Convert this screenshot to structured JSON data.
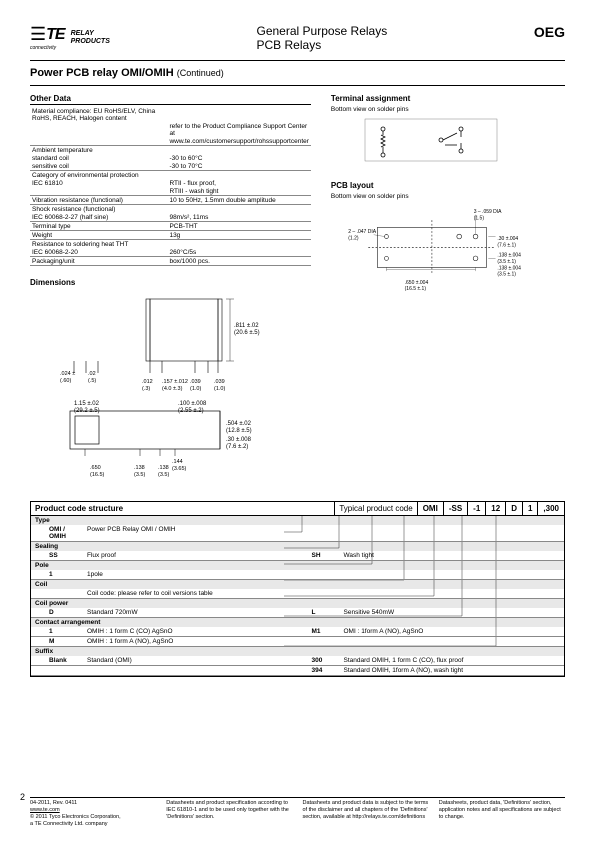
{
  "header": {
    "logo_text": "TE",
    "logo_sub": "connectivity",
    "logo_side": "RELAY\nPRODUCTS",
    "title1": "General Purpose Relays",
    "title2": "PCB Relays",
    "brand": "OEG"
  },
  "main_title": "Power PCB relay OMI/OMIH",
  "continued": "(Continued)",
  "other_data": {
    "heading": "Other Data",
    "rows": [
      {
        "l": "Material compliance: EU RoHS/ELV, China RoHS, REACH, Halogen content",
        "r": "",
        "bb": false
      },
      {
        "l": "",
        "r": "refer to the Product Compliance Support Center at",
        "bb": false
      },
      {
        "l": "",
        "r": "www.te.com/customersupport/rohssupportcenter",
        "bb": true
      },
      {
        "l": "Ambient temperature",
        "r": "",
        "bb": false
      },
      {
        "l": "  standard coil",
        "r": "-30 to 60°C",
        "bb": false
      },
      {
        "l": "  sensitive coil",
        "r": "-30 to 70°C",
        "bb": true
      },
      {
        "l": "Category of environmental protection",
        "r": "",
        "bb": false
      },
      {
        "l": "  IEC 61810",
        "r": "RTII - flux proof,",
        "bb": false
      },
      {
        "l": "",
        "r": "RTIII - wash tight",
        "bb": true
      },
      {
        "l": "Vibration resistance (functional)",
        "r": "10 to 50Hz, 1.5mm double amplitude",
        "bb": true
      },
      {
        "l": "Shock resistance (functional)",
        "r": "",
        "bb": false
      },
      {
        "l": "  IEC 60068-2-27  (half sine)",
        "r": "98m/s², 11ms",
        "bb": true
      },
      {
        "l": "Terminal type",
        "r": "PCB-THT",
        "bb": true
      },
      {
        "l": "Weight",
        "r": "13g",
        "bb": true
      },
      {
        "l": "Resistance to soldering heat THT",
        "r": "",
        "bb": false
      },
      {
        "l": "  IEC 60068-2-20",
        "r": "260°C/5s",
        "bb": true
      },
      {
        "l": "Packaging/unit",
        "r": "box/1000 pcs.",
        "bb": true
      }
    ]
  },
  "terminal": {
    "heading": "Terminal assignment",
    "sub": "Bottom view on solder pins"
  },
  "pcb": {
    "heading": "PCB layout",
    "sub": "Bottom view on solder pins",
    "labels": {
      "dia059": "3 – .059 DIA\n(1.5)",
      "dia047": "2 – .047 DIA\n(1.2)",
      "d30": ".30 ±.004\n(7.6 ±.1)",
      "d138a": ".138 ±.004\n(3.5 ±.1)",
      "d138b": ".138 ±.004\n(3.5 ±.1)",
      "d650": ".650 ±.004\n(16.5 ±.1)"
    }
  },
  "dimensions": {
    "heading": "Dimensions",
    "labels": {
      "h811": ".811 ±.02\n(20.6 ±.5)",
      "h157": ".157 ±.012\n(4.0 ±.3)",
      "w024": ".024 ±\n(.60)",
      "w02": ".02\n(.5)",
      "w012": ".012\n(.3)",
      "w039a": ".039\n(1.0)",
      "w039b": ".039\n(1.0)",
      "l115": "1.15 ±.02\n(29.2 ±.5)",
      "l100": ".100 ±.008\n(2.55 ±.2)",
      "l504": ".504 ±.02\n(12.8 ±.5)",
      "l30": ".30 ±.008\n(7.6 ±.2)",
      "l650": ".650\n(16.5)",
      "l138a": ".138\n(3.5)",
      "l138b": ".138\n(3.5)",
      "l144": ".144\n(3.65)"
    }
  },
  "product_code": {
    "heading": "Product code structure",
    "typical": "Typical product code",
    "cells": [
      "OMI",
      "-SS",
      "-1",
      "12",
      "D",
      "1",
      ",300"
    ],
    "groups": [
      {
        "label": "Type",
        "items": [
          {
            "code": "OMI / OMIH",
            "desc": "Power PCB Relay OMI / OMIH"
          }
        ]
      },
      {
        "label": "Sealing",
        "items": [
          {
            "code": "SS",
            "desc": "Flux proof",
            "code2": "SH",
            "desc2": "Wash tight"
          }
        ]
      },
      {
        "label": "Pole",
        "items": [
          {
            "code": "1",
            "desc": "1pole"
          }
        ]
      },
      {
        "label": "Coil",
        "items": [
          {
            "code": "",
            "desc": "Coil code: please refer to coil versions table"
          }
        ]
      },
      {
        "label": "Coil power",
        "items": [
          {
            "code": "D",
            "desc": "Standard 720mW",
            "code2": "L",
            "desc2": "Sensitive 540mW"
          }
        ]
      },
      {
        "label": "Contact arrangement",
        "items": [
          {
            "code": "1",
            "desc": "OMIH : 1 form C (CO) AgSnO",
            "code2": "M1",
            "desc2": "OMI : 1form A (NO), AgSnO"
          },
          {
            "code": "M",
            "desc": "OMIH : 1 form A (NO), AgSnO"
          }
        ]
      },
      {
        "label": "Suffix",
        "items": [
          {
            "code": "Blank",
            "desc": "Standard (OMI)",
            "code2": "300",
            "desc2": "Standard OMIH, 1 form C (CO), flux proof"
          },
          {
            "code": "",
            "desc": "",
            "code2": "394",
            "desc2": "Standard OMIH, 1form A (NO), wash tight"
          }
        ]
      }
    ]
  },
  "footer": {
    "page": "2",
    "col1a": "04-2011, Rev. 0411",
    "col1b": "www.te.com",
    "col1c": "© 2011 Tyco Electronics Corporation,",
    "col1d": "a TE Connectivity Ltd. company",
    "col2": "Datasheets and product specification according to IEC 61810-1 and to be used only together with the 'Definitions' section.",
    "col3": "Datasheets and product data is subject to the terms of the disclaimer and all chapters of the 'Definitions' section, available at http://relays.te.com/definitions",
    "col4": "Datasheets, product data, 'Definitions' section, application notes and all specifications are subject to change."
  },
  "colors": {
    "text": "#000000",
    "line": "#000000",
    "grid": "#888888",
    "shade": "#e8e8e8",
    "bg": "#ffffff"
  }
}
